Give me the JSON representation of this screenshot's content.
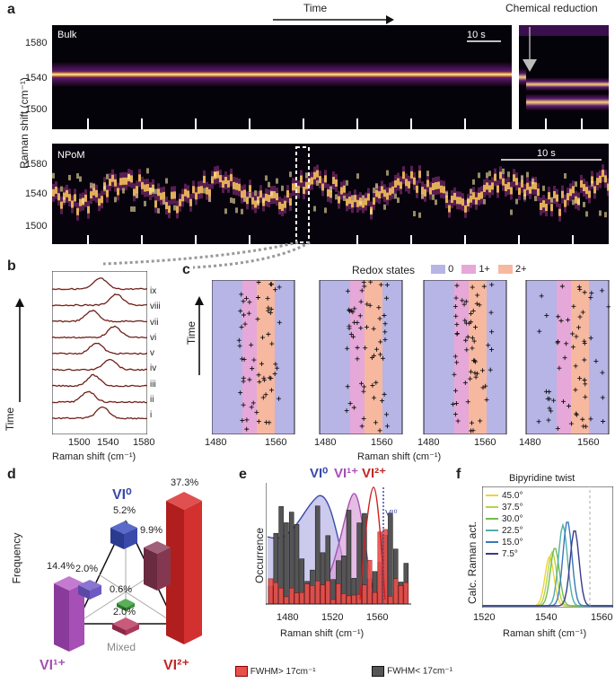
{
  "panel_a": {
    "label": "a",
    "time_label": "Time",
    "chemical_reduction": "Chemical reduction",
    "ylabel": "Raman shift (cm⁻¹)",
    "bulk_label": "Bulk",
    "npom_label": "NPoM",
    "scale_bulk": "10 s",
    "scale_npom": "10 s",
    "yticks_top": [
      "1580",
      "1540",
      "1500"
    ],
    "yticks_bottom": [
      "1580",
      "1540",
      "1500"
    ]
  },
  "panel_b": {
    "label": "b",
    "time_label": "Time",
    "xlabel": "Raman shift (cm⁻¹)",
    "xticks": [
      "1500",
      "1540",
      "1580"
    ],
    "numerals": [
      "ix",
      "viii",
      "vii",
      "vi",
      "v",
      "iv",
      "iii",
      "ii",
      "i"
    ]
  },
  "panel_c": {
    "label": "c",
    "legend_title": "Redox states",
    "legend": [
      "0",
      "1+",
      "2+"
    ],
    "time_label": "Time",
    "xlabel": "Raman shift (cm⁻¹)",
    "xticks": [
      "1480",
      "1560"
    ],
    "colors": {
      "zero": "#b7b4e6",
      "one": "#e6a8d8",
      "two": "#f7b8a0"
    }
  },
  "panel_d": {
    "label": "d",
    "ylabel": "Frequency",
    "vi0": "VI⁰",
    "vi1": "VI¹⁺",
    "vi2": "VI²⁺",
    "mixed": "Mixed",
    "percents": {
      "vi2": "37.3%",
      "vi1": "14.4%",
      "vi0": "5.2%",
      "mix_right": "9.9%",
      "mix_left": "2.0%",
      "mix_mid": "0.6%",
      "mix_low": "2.0%"
    }
  },
  "panel_e": {
    "label": "e",
    "ylabel": "Occurrence",
    "xlabel": "Raman shift (cm⁻¹)",
    "xticks": [
      "1480",
      "1520",
      "1560"
    ],
    "vi0": "VI⁰",
    "vi1": "VI¹⁺",
    "vi2": "VI²⁺",
    "vi_annot": "VI⁰",
    "legend_red": "FWHM> 17cm⁻¹",
    "legend_gray": "FWHM< 17cm⁻¹"
  },
  "panel_f": {
    "label": "f",
    "title": "Bipyridine twist",
    "ylabel": "Calc. Raman act.",
    "xlabel": "Raman shift (cm⁻¹)",
    "xticks": [
      "1520",
      "1540",
      "1560"
    ],
    "legend": [
      "45.0°",
      "37.5°",
      "30.0°",
      "22.5°",
      "15.0°",
      "7.5°"
    ],
    "colors": [
      "#f2d33a",
      "#b6d44a",
      "#6fbf4a",
      "#4fb0a8",
      "#3a78b8",
      "#3a3a8c"
    ]
  }
}
